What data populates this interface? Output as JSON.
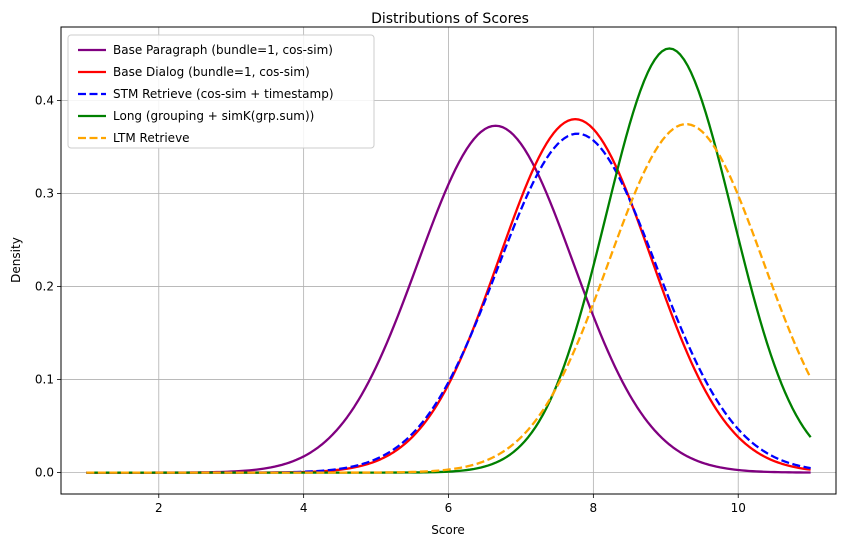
{
  "chart_data": {
    "type": "line",
    "title": "Distributions of Scores",
    "xlabel": "Score",
    "ylabel": "Density",
    "xlim": [
      0.65,
      11.35
    ],
    "ylim": [
      -0.023,
      0.479
    ],
    "x_ticks": [
      2,
      4,
      6,
      8,
      10
    ],
    "y_ticks": [
      0.0,
      0.1,
      0.2,
      0.3,
      0.4
    ],
    "x_tick_labels": [
      "2",
      "4",
      "6",
      "8",
      "10"
    ],
    "y_tick_labels": [
      "0.0",
      "0.1",
      "0.2",
      "0.3",
      "0.4"
    ],
    "x_range": [
      1,
      11
    ],
    "grid": true,
    "legend_position": "upper-left",
    "series": [
      {
        "name": "Base Paragraph (bundle=1, cos-sim)",
        "color": "#800080",
        "dash": "solid",
        "distribution": "normal",
        "mean": 6.65,
        "std": 1.07
      },
      {
        "name": "Base Dialog (bundle=1, cos-sim)",
        "color": "#ff0000",
        "dash": "solid",
        "distribution": "normal",
        "mean": 7.75,
        "std": 1.05
      },
      {
        "name": "STM Retrieve (cos-sim + timestamp)",
        "color": "#0000ff",
        "dash": "dashed",
        "distribution": "normal",
        "mean": 7.78,
        "std": 1.095
      },
      {
        "name": "Long (grouping + simK(grp.sum))",
        "color": "#008000",
        "dash": "solid",
        "distribution": "normal",
        "mean": 9.05,
        "std": 0.875
      },
      {
        "name": "LTM Retrieve",
        "color": "#ffa500",
        "dash": "dashed",
        "distribution": "normal",
        "mean": 9.28,
        "std": 1.065
      }
    ]
  }
}
